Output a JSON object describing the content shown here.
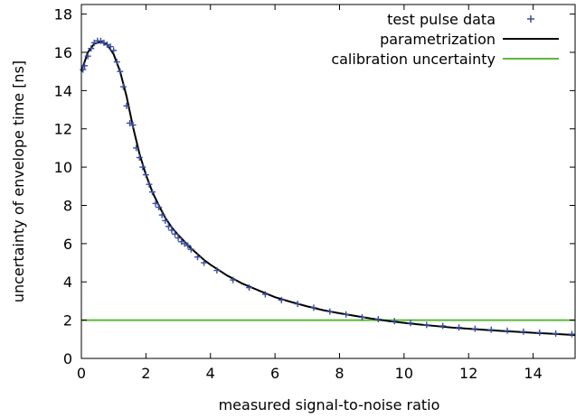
{
  "chart_data": {
    "type": "scatter",
    "title": "",
    "xlabel": "measured signal-to-noise ratio",
    "ylabel": "uncertainty of envelope time [ns]",
    "xlim": [
      0,
      15.3
    ],
    "ylim": [
      0,
      18.5
    ],
    "x_ticks": [
      0,
      2,
      4,
      6,
      8,
      10,
      12,
      14
    ],
    "y_ticks": [
      0,
      2,
      4,
      6,
      8,
      10,
      12,
      14,
      16,
      18
    ],
    "grid": false,
    "legend_position": "top-right",
    "series": [
      {
        "name": "test pulse data",
        "kind": "points",
        "marker": "plus",
        "color": "#3a4f9c",
        "x": [
          0.05,
          0.1,
          0.2,
          0.3,
          0.4,
          0.5,
          0.6,
          0.7,
          0.8,
          0.9,
          1.0,
          1.1,
          1.2,
          1.3,
          1.4,
          1.5,
          1.6,
          1.7,
          1.8,
          1.9,
          2.0,
          2.1,
          2.2,
          2.3,
          2.4,
          2.5,
          2.6,
          2.7,
          2.8,
          2.9,
          3.0,
          3.1,
          3.2,
          3.3,
          3.4,
          3.6,
          3.8,
          4.2,
          4.7,
          5.2,
          5.7,
          6.2,
          6.7,
          7.2,
          7.7,
          8.2,
          8.7,
          9.2,
          9.7,
          10.2,
          10.7,
          11.2,
          11.7,
          12.2,
          12.7,
          13.2,
          13.7,
          14.2,
          14.7,
          15.2
        ],
        "y": [
          15.1,
          15.3,
          15.8,
          16.2,
          16.5,
          16.6,
          16.6,
          16.5,
          16.4,
          16.3,
          16.1,
          15.5,
          15.0,
          14.2,
          13.2,
          12.3,
          12.2,
          11.0,
          10.5,
          10.0,
          9.6,
          9.1,
          8.7,
          8.1,
          7.9,
          7.5,
          7.2,
          6.9,
          6.7,
          6.5,
          6.3,
          6.1,
          6.0,
          5.9,
          5.7,
          5.3,
          5.0,
          4.6,
          4.1,
          3.7,
          3.35,
          3.05,
          2.85,
          2.65,
          2.45,
          2.3,
          2.15,
          2.05,
          1.95,
          1.85,
          1.75,
          1.7,
          1.62,
          1.55,
          1.5,
          1.45,
          1.4,
          1.35,
          1.3,
          1.27
        ]
      },
      {
        "name": "parametrization",
        "kind": "line",
        "color": "#000000",
        "x": [
          0,
          0.2,
          0.4,
          0.6,
          0.8,
          1.0,
          1.2,
          1.4,
          1.6,
          1.8,
          2.0,
          2.2,
          2.4,
          2.6,
          2.8,
          3.0,
          3.2,
          3.4,
          3.6,
          3.8,
          4.0,
          4.5,
          5.0,
          5.5,
          6.0,
          6.5,
          7.0,
          7.5,
          8.0,
          8.5,
          9.0,
          9.5,
          10.0,
          10.5,
          11.0,
          11.5,
          12.0,
          12.5,
          13.0,
          13.5,
          14.0,
          14.5,
          15.0,
          15.3
        ],
        "y": [
          15.0,
          16.0,
          16.45,
          16.55,
          16.4,
          15.9,
          15.0,
          13.7,
          12.1,
          10.7,
          9.6,
          8.7,
          8.0,
          7.35,
          6.85,
          6.45,
          6.1,
          5.75,
          5.45,
          5.15,
          4.9,
          4.35,
          3.9,
          3.55,
          3.2,
          2.95,
          2.72,
          2.52,
          2.36,
          2.22,
          2.08,
          1.96,
          1.86,
          1.77,
          1.69,
          1.61,
          1.55,
          1.49,
          1.44,
          1.39,
          1.34,
          1.3,
          1.25,
          1.22
        ]
      },
      {
        "name": "calibration uncertainty",
        "kind": "hline",
        "color": "#5cb83a",
        "y": 2
      }
    ]
  }
}
